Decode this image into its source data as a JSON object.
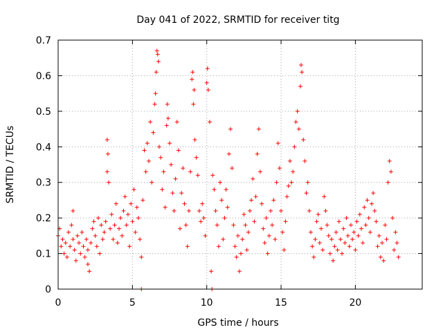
{
  "chart_data": {
    "type": "scatter",
    "title": "Day 041 of 2022, SRMTID for receiver titg",
    "xlabel": "GPS time / hours",
    "ylabel": "SRMTID / TECUs",
    "xlim": [
      0,
      24.5
    ],
    "ylim": [
      0,
      0.7
    ],
    "xticks": [
      0,
      5,
      10,
      15,
      20
    ],
    "yticks": [
      0,
      0.1,
      0.2,
      0.3,
      0.4,
      0.5,
      0.6,
      0.7
    ],
    "xtick_labels": [
      "0",
      "5",
      "10",
      "15",
      "20"
    ],
    "ytick_labels": [
      "0",
      "0.1",
      "0.2",
      "0.3",
      "0.4",
      "0.5",
      "0.6",
      "0.7"
    ],
    "grid": true,
    "marker": "+",
    "color": "#ff0000",
    "series": [
      {
        "name": "SRMTID",
        "points": [
          [
            0.0,
            0.15
          ],
          [
            0.1,
            0.17
          ],
          [
            0.2,
            0.12
          ],
          [
            0.3,
            0.14
          ],
          [
            0.4,
            0.1
          ],
          [
            0.5,
            0.13
          ],
          [
            0.6,
            0.09
          ],
          [
            0.7,
            0.16
          ],
          [
            0.8,
            0.12
          ],
          [
            0.9,
            0.18
          ],
          [
            1.0,
            0.22
          ],
          [
            1.0,
            0.14
          ],
          [
            1.1,
            0.11
          ],
          [
            1.2,
            0.08
          ],
          [
            1.3,
            0.15
          ],
          [
            1.4,
            0.13
          ],
          [
            1.5,
            0.1
          ],
          [
            1.6,
            0.16
          ],
          [
            1.7,
            0.12
          ],
          [
            1.8,
            0.09
          ],
          [
            1.9,
            0.14
          ],
          [
            2.0,
            0.07
          ],
          [
            2.0,
            0.11
          ],
          [
            2.1,
            0.05
          ],
          [
            2.2,
            0.13
          ],
          [
            2.3,
            0.17
          ],
          [
            2.4,
            0.19
          ],
          [
            2.5,
            0.15
          ],
          [
            2.6,
            0.12
          ],
          [
            2.7,
            0.2
          ],
          [
            2.8,
            0.1
          ],
          [
            2.9,
            0.18
          ],
          [
            3.0,
            0.14
          ],
          [
            3.1,
            0.16
          ],
          [
            3.2,
            0.19
          ],
          [
            3.3,
            0.33
          ],
          [
            3.3,
            0.42
          ],
          [
            3.35,
            0.38
          ],
          [
            3.4,
            0.3
          ],
          [
            3.5,
            0.17
          ],
          [
            3.6,
            0.21
          ],
          [
            3.7,
            0.14
          ],
          [
            3.8,
            0.18
          ],
          [
            3.9,
            0.24
          ],
          [
            4.0,
            0.13
          ],
          [
            4.1,
            0.17
          ],
          [
            4.2,
            0.2
          ],
          [
            4.3,
            0.15
          ],
          [
            4.4,
            0.22
          ],
          [
            4.5,
            0.26
          ],
          [
            4.6,
            0.18
          ],
          [
            4.7,
            0.21
          ],
          [
            4.8,
            0.12
          ],
          [
            4.9,
            0.24
          ],
          [
            5.0,
            0.19
          ],
          [
            5.1,
            0.28
          ],
          [
            5.2,
            0.16
          ],
          [
            5.3,
            0.23
          ],
          [
            5.4,
            0.2
          ],
          [
            5.5,
            0.14
          ],
          [
            5.6,
            0.09
          ],
          [
            5.6,
            0.0
          ],
          [
            5.7,
            0.25
          ],
          [
            5.8,
            0.39
          ],
          [
            5.9,
            0.33
          ],
          [
            6.0,
            0.41
          ],
          [
            6.1,
            0.36
          ],
          [
            6.2,
            0.47
          ],
          [
            6.3,
            0.3
          ],
          [
            6.4,
            0.44
          ],
          [
            6.5,
            0.52
          ],
          [
            6.55,
            0.55
          ],
          [
            6.6,
            0.61
          ],
          [
            6.65,
            0.67
          ],
          [
            6.7,
            0.66
          ],
          [
            6.75,
            0.64
          ],
          [
            6.8,
            0.4
          ],
          [
            6.9,
            0.37
          ],
          [
            7.0,
            0.28
          ],
          [
            7.1,
            0.33
          ],
          [
            7.2,
            0.23
          ],
          [
            7.3,
            0.46
          ],
          [
            7.35,
            0.52
          ],
          [
            7.4,
            0.48
          ],
          [
            7.5,
            0.41
          ],
          [
            7.6,
            0.35
          ],
          [
            7.7,
            0.27
          ],
          [
            7.8,
            0.22
          ],
          [
            7.9,
            0.31
          ],
          [
            8.0,
            0.47
          ],
          [
            8.1,
            0.39
          ],
          [
            8.2,
            0.17
          ],
          [
            8.3,
            0.27
          ],
          [
            8.4,
            0.34
          ],
          [
            8.5,
            0.24
          ],
          [
            8.6,
            0.18
          ],
          [
            8.7,
            0.12
          ],
          [
            8.8,
            0.22
          ],
          [
            8.9,
            0.33
          ],
          [
            9.0,
            0.59
          ],
          [
            9.05,
            0.61
          ],
          [
            9.1,
            0.52
          ],
          [
            9.15,
            0.56
          ],
          [
            9.2,
            0.42
          ],
          [
            9.3,
            0.37
          ],
          [
            9.4,
            0.32
          ],
          [
            9.5,
            0.22
          ],
          [
            9.6,
            0.19
          ],
          [
            9.7,
            0.24
          ],
          [
            9.8,
            0.2
          ],
          [
            9.9,
            0.15
          ],
          [
            10.0,
            0.58
          ],
          [
            10.05,
            0.62
          ],
          [
            10.1,
            0.56
          ],
          [
            10.2,
            0.47
          ],
          [
            10.3,
            0.05
          ],
          [
            10.35,
            0.0
          ],
          [
            10.4,
            0.32
          ],
          [
            10.5,
            0.28
          ],
          [
            10.6,
            0.22
          ],
          [
            10.7,
            0.18
          ],
          [
            10.8,
            0.12
          ],
          [
            10.9,
            0.3
          ],
          [
            11.0,
            0.25
          ],
          [
            11.1,
            0.14
          ],
          [
            11.2,
            0.2
          ],
          [
            11.3,
            0.28
          ],
          [
            11.4,
            0.23
          ],
          [
            11.5,
            0.38
          ],
          [
            11.6,
            0.45
          ],
          [
            11.7,
            0.34
          ],
          [
            11.8,
            0.18
          ],
          [
            11.9,
            0.12
          ],
          [
            12.0,
            0.09
          ],
          [
            12.1,
            0.15
          ],
          [
            12.2,
            0.05
          ],
          [
            12.3,
            0.1
          ],
          [
            12.4,
            0.14
          ],
          [
            12.5,
            0.21
          ],
          [
            12.6,
            0.18
          ],
          [
            12.7,
            0.11
          ],
          [
            12.8,
            0.16
          ],
          [
            12.9,
            0.22
          ],
          [
            13.0,
            0.25
          ],
          [
            13.1,
            0.31
          ],
          [
            13.2,
            0.19
          ],
          [
            13.3,
            0.26
          ],
          [
            13.4,
            0.38
          ],
          [
            13.5,
            0.45
          ],
          [
            13.6,
            0.33
          ],
          [
            13.7,
            0.24
          ],
          [
            13.8,
            0.17
          ],
          [
            13.9,
            0.13
          ],
          [
            14.0,
            0.2
          ],
          [
            14.1,
            0.1
          ],
          [
            14.2,
            0.15
          ],
          [
            14.3,
            0.22
          ],
          [
            14.4,
            0.18
          ],
          [
            14.5,
            0.25
          ],
          [
            14.6,
            0.14
          ],
          [
            14.7,
            0.3
          ],
          [
            14.8,
            0.41
          ],
          [
            14.9,
            0.34
          ],
          [
            15.0,
            0.22
          ],
          [
            15.1,
            0.16
          ],
          [
            15.2,
            0.11
          ],
          [
            15.3,
            0.19
          ],
          [
            15.4,
            0.26
          ],
          [
            15.5,
            0.29
          ],
          [
            15.6,
            0.36
          ],
          [
            15.7,
            0.3
          ],
          [
            15.8,
            0.33
          ],
          [
            15.9,
            0.4
          ],
          [
            16.0,
            0.47
          ],
          [
            16.1,
            0.5
          ],
          [
            16.2,
            0.45
          ],
          [
            16.3,
            0.57
          ],
          [
            16.35,
            0.63
          ],
          [
            16.4,
            0.61
          ],
          [
            16.5,
            0.42
          ],
          [
            16.6,
            0.36
          ],
          [
            16.7,
            0.27
          ],
          [
            16.8,
            0.3
          ],
          [
            16.9,
            0.22
          ],
          [
            17.0,
            0.16
          ],
          [
            17.1,
            0.12
          ],
          [
            17.2,
            0.09
          ],
          [
            17.3,
            0.14
          ],
          [
            17.4,
            0.19
          ],
          [
            17.5,
            0.21
          ],
          [
            17.6,
            0.13
          ],
          [
            17.7,
            0.17
          ],
          [
            17.8,
            0.11
          ],
          [
            17.9,
            0.26
          ],
          [
            18.0,
            0.22
          ],
          [
            18.1,
            0.18
          ],
          [
            18.2,
            0.15
          ],
          [
            18.3,
            0.1
          ],
          [
            18.4,
            0.14
          ],
          [
            18.5,
            0.08
          ],
          [
            18.6,
            0.12
          ],
          [
            18.7,
            0.16
          ],
          [
            18.8,
            0.11
          ],
          [
            18.9,
            0.19
          ],
          [
            19.0,
            0.14
          ],
          [
            19.1,
            0.1
          ],
          [
            19.2,
            0.17
          ],
          [
            19.3,
            0.13
          ],
          [
            19.4,
            0.2
          ],
          [
            19.5,
            0.15
          ],
          [
            19.6,
            0.12
          ],
          [
            19.7,
            0.18
          ],
          [
            19.8,
            0.14
          ],
          [
            19.9,
            0.16
          ],
          [
            20.0,
            0.11
          ],
          [
            20.1,
            0.19
          ],
          [
            20.2,
            0.15
          ],
          [
            20.3,
            0.21
          ],
          [
            20.4,
            0.17
          ],
          [
            20.5,
            0.13
          ],
          [
            20.6,
            0.23
          ],
          [
            20.7,
            0.18
          ],
          [
            20.8,
            0.25
          ],
          [
            20.9,
            0.2
          ],
          [
            21.0,
            0.16
          ],
          [
            21.1,
            0.24
          ],
          [
            21.2,
            0.27
          ],
          [
            21.3,
            0.22
          ],
          [
            21.4,
            0.19
          ],
          [
            21.5,
            0.12
          ],
          [
            21.6,
            0.15
          ],
          [
            21.7,
            0.09
          ],
          [
            21.8,
            0.13
          ],
          [
            21.9,
            0.08
          ],
          [
            22.0,
            0.18
          ],
          [
            22.1,
            0.14
          ],
          [
            22.2,
            0.3
          ],
          [
            22.3,
            0.36
          ],
          [
            22.4,
            0.33
          ],
          [
            22.5,
            0.2
          ],
          [
            22.6,
            0.11
          ],
          [
            22.7,
            0.16
          ],
          [
            22.8,
            0.13
          ],
          [
            22.9,
            0.09
          ]
        ]
      }
    ]
  }
}
